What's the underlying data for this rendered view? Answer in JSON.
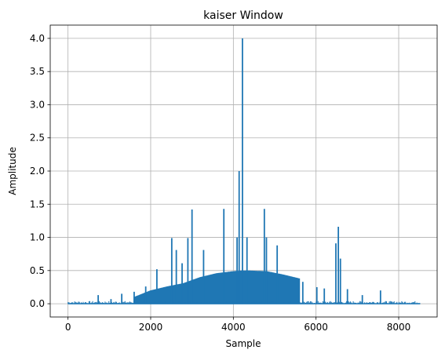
{
  "chart_data": {
    "type": "line",
    "title": "kaiser Window",
    "xlabel": "Sample",
    "ylabel": "Amplitude",
    "xlim": [
      -430,
      8930
    ],
    "ylim": [
      -0.2,
      4.2
    ],
    "xticks": [
      0,
      2000,
      4000,
      6000,
      8000
    ],
    "xtick_labels": [
      "0",
      "2000",
      "4000",
      "6000",
      "8000"
    ],
    "yticks": [
      0.0,
      0.5,
      1.0,
      1.5,
      2.0,
      2.5,
      3.0,
      3.5,
      4.0
    ],
    "ytick_labels": [
      "0.0",
      "0.5",
      "1.0",
      "1.5",
      "2.0",
      "2.5",
      "3.0",
      "3.5",
      "4.0"
    ],
    "grid": true,
    "line_color": "#1f77b4",
    "baseline": {
      "x": [
        0,
        8520
      ],
      "y": 0.0
    },
    "envelope": {
      "x": [
        1600,
        2000,
        2400,
        2800,
        3200,
        3600,
        4000,
        4200,
        4400,
        4800,
        5200,
        5600
      ],
      "y": [
        0.1,
        0.2,
        0.26,
        0.31,
        0.4,
        0.46,
        0.49,
        0.5,
        0.5,
        0.49,
        0.44,
        0.38
      ]
    },
    "spikes": [
      {
        "x": 730,
        "y": 0.13
      },
      {
        "x": 1040,
        "y": 0.07
      },
      {
        "x": 1300,
        "y": 0.15
      },
      {
        "x": 1600,
        "y": 0.18
      },
      {
        "x": 1880,
        "y": 0.26
      },
      {
        "x": 2150,
        "y": 0.52
      },
      {
        "x": 2510,
        "y": 0.99
      },
      {
        "x": 2620,
        "y": 0.81
      },
      {
        "x": 2760,
        "y": 0.61
      },
      {
        "x": 2900,
        "y": 0.99
      },
      {
        "x": 3000,
        "y": 1.42
      },
      {
        "x": 3280,
        "y": 0.81
      },
      {
        "x": 3770,
        "y": 1.43
      },
      {
        "x": 4090,
        "y": 1.0
      },
      {
        "x": 4140,
        "y": 2.0
      },
      {
        "x": 4220,
        "y": 4.0
      },
      {
        "x": 4330,
        "y": 1.0
      },
      {
        "x": 4750,
        "y": 1.43
      },
      {
        "x": 4800,
        "y": 1.0
      },
      {
        "x": 5060,
        "y": 0.88
      },
      {
        "x": 5680,
        "y": 0.33
      },
      {
        "x": 6020,
        "y": 0.25
      },
      {
        "x": 6200,
        "y": 0.23
      },
      {
        "x": 6480,
        "y": 0.91
      },
      {
        "x": 6540,
        "y": 1.16
      },
      {
        "x": 6590,
        "y": 0.68
      },
      {
        "x": 6760,
        "y": 0.22
      },
      {
        "x": 7120,
        "y": 0.13
      },
      {
        "x": 7560,
        "y": 0.2
      }
    ]
  }
}
